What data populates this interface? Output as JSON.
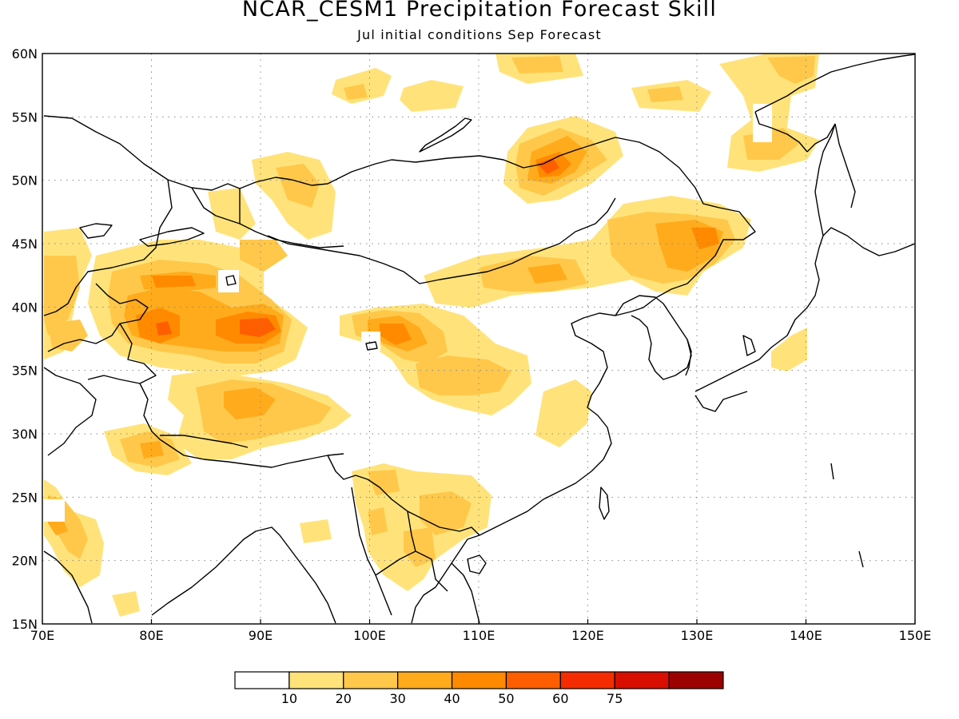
{
  "header": {
    "title": "NCAR_CESM1 Precipitation Forecast Skill",
    "subtitle": "Jul initial conditions  Sep Forecast"
  },
  "map": {
    "lon_range": [
      70,
      150
    ],
    "lat_range": [
      15,
      60
    ],
    "lon_ticks": [
      "70E",
      "80E",
      "90E",
      "100E",
      "110E",
      "120E",
      "130E",
      "140E",
      "150E"
    ],
    "lat_ticks": [
      "15N",
      "20N",
      "25N",
      "30N",
      "35N",
      "40N",
      "45N",
      "50N",
      "55N",
      "60N"
    ],
    "gridlines": "dotted"
  },
  "colorbar": {
    "labels": [
      "10",
      "20",
      "30",
      "40",
      "50",
      "60",
      "75"
    ],
    "colors": [
      "#ffffff",
      "#ffe37a",
      "#ffc84a",
      "#ffab1c",
      "#ff8a00",
      "#ff5e00",
      "#f42c00",
      "#d80f00",
      "#9c0000"
    ]
  }
}
